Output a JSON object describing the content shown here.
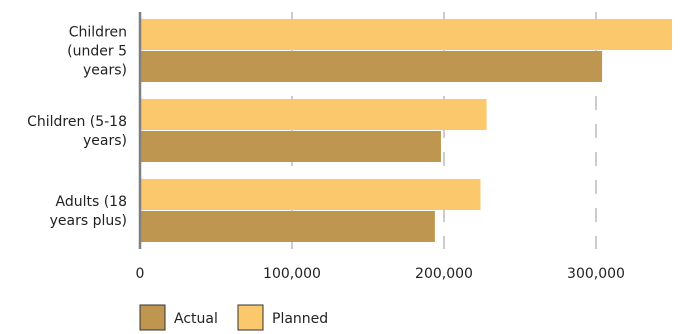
{
  "chart_data": {
    "type": "bar",
    "orientation": "horizontal",
    "title": "",
    "xlabel": "",
    "ylabel": "",
    "categories": [
      [
        "Children",
        "(under 5",
        "years)"
      ],
      [
        "Children (5-18",
        "years)"
      ],
      [
        "Adults (18",
        "years plus)"
      ]
    ],
    "series": [
      {
        "name": "Planned",
        "color": "#FBC96B",
        "values": [
          350000,
          228000,
          224000
        ]
      },
      {
        "name": "Actual",
        "color": "#BE9650",
        "values": [
          304000,
          198000,
          194000
        ]
      }
    ],
    "xlim": [
      0,
      350000
    ],
    "xticks": [
      0,
      100000,
      200000,
      300000
    ],
    "xtick_labels": [
      "0",
      "100,000",
      "200,000",
      "300,000"
    ],
    "grid": "vertical dashed",
    "legend": {
      "placement": "bottom-left",
      "items": [
        {
          "label": "Actual",
          "color": "#BE9650"
        },
        {
          "label": "Planned",
          "color": "#FBC96B"
        }
      ]
    }
  }
}
